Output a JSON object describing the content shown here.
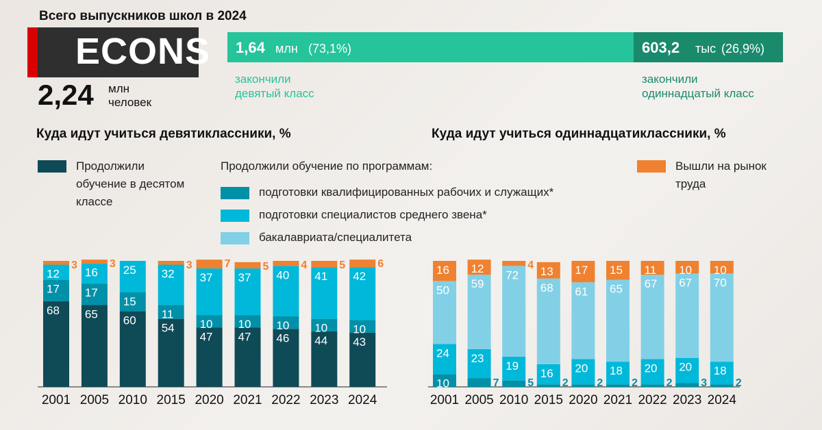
{
  "logo": "ECONS",
  "total": {
    "label": "Всего выпускников школ в 2024",
    "value": "2,24",
    "unit": "млн",
    "unit2": "человек"
  },
  "split": [
    {
      "value": "1,64",
      "unit": "млн",
      "pct": "(73,1%)",
      "share": 73.1,
      "caption1": "закончили",
      "caption2": "девятый класс",
      "color": "#25c49b"
    },
    {
      "value": "603,2",
      "unit": "тыс",
      "pct": "(26,9%)",
      "share": 26.9,
      "caption1": "закончили",
      "caption2": "одиннадцатый класс",
      "color": "#1a8a6c"
    }
  ],
  "legend": {
    "continued": "Продолжили обучение в десятом классе",
    "programs_title": "Продолжили обучение по программам:",
    "workers": "подготовки квалифицированных рабочих и служащих*",
    "mid": "подготовки специалистов среднего звена*",
    "bach": "бакалавриата/специалитета",
    "labor": "Вышли на рынок труда"
  },
  "colors": {
    "school": "#0f4a57",
    "workers": "#0090a8",
    "mid": "#00b8d9",
    "bach": "#82d0e6",
    "labor": "#ef8130"
  },
  "chart_data": [
    {
      "type": "bar",
      "stacked": true,
      "title": "Куда идут учиться девятиклассники, %",
      "categories": [
        "2001",
        "2005",
        "2010",
        "2015",
        "2020",
        "2021",
        "2022",
        "2023",
        "2024"
      ],
      "series": [
        {
          "name": "Продолжили обучение в десятом классе",
          "key": "school",
          "values": [
            68,
            65,
            60,
            54,
            47,
            47,
            46,
            44,
            43
          ]
        },
        {
          "name": "подготовки квалифицированных рабочих и служащих*",
          "key": "workers",
          "values": [
            17,
            17,
            15,
            11,
            10,
            10,
            10,
            10,
            10
          ]
        },
        {
          "name": "подготовки специалистов среднего звена*",
          "key": "mid",
          "values": [
            12,
            16,
            25,
            32,
            37,
            37,
            40,
            41,
            42
          ]
        },
        {
          "name": "Вышли на рынок труда",
          "key": "labor",
          "values": [
            3,
            3,
            0,
            3,
            7,
            5,
            4,
            5,
            6
          ]
        }
      ],
      "ylim": [
        0,
        100
      ]
    },
    {
      "type": "bar",
      "stacked": true,
      "title": "Куда идут учиться одиннадцатиклассники, %",
      "categories": [
        "2001",
        "2005",
        "2010",
        "2015",
        "2020",
        "2021",
        "2022",
        "2023",
        "2024"
      ],
      "series": [
        {
          "name": "подготовки квалифицированных рабочих и служащих*",
          "key": "workers",
          "values": [
            10,
            7,
            5,
            2,
            2,
            2,
            2,
            3,
            2
          ]
        },
        {
          "name": "подготовки специалистов среднего звена*",
          "key": "mid",
          "values": [
            24,
            23,
            19,
            16,
            20,
            18,
            20,
            20,
            18
          ]
        },
        {
          "name": "бакалавриата/специалитета",
          "key": "bach",
          "values": [
            50,
            59,
            72,
            68,
            61,
            65,
            67,
            67,
            70
          ]
        },
        {
          "name": "Вышли на рынок труда",
          "key": "labor",
          "values": [
            16,
            12,
            4,
            13,
            17,
            15,
            11,
            10,
            10
          ]
        }
      ],
      "ylim": [
        0,
        100
      ]
    }
  ]
}
